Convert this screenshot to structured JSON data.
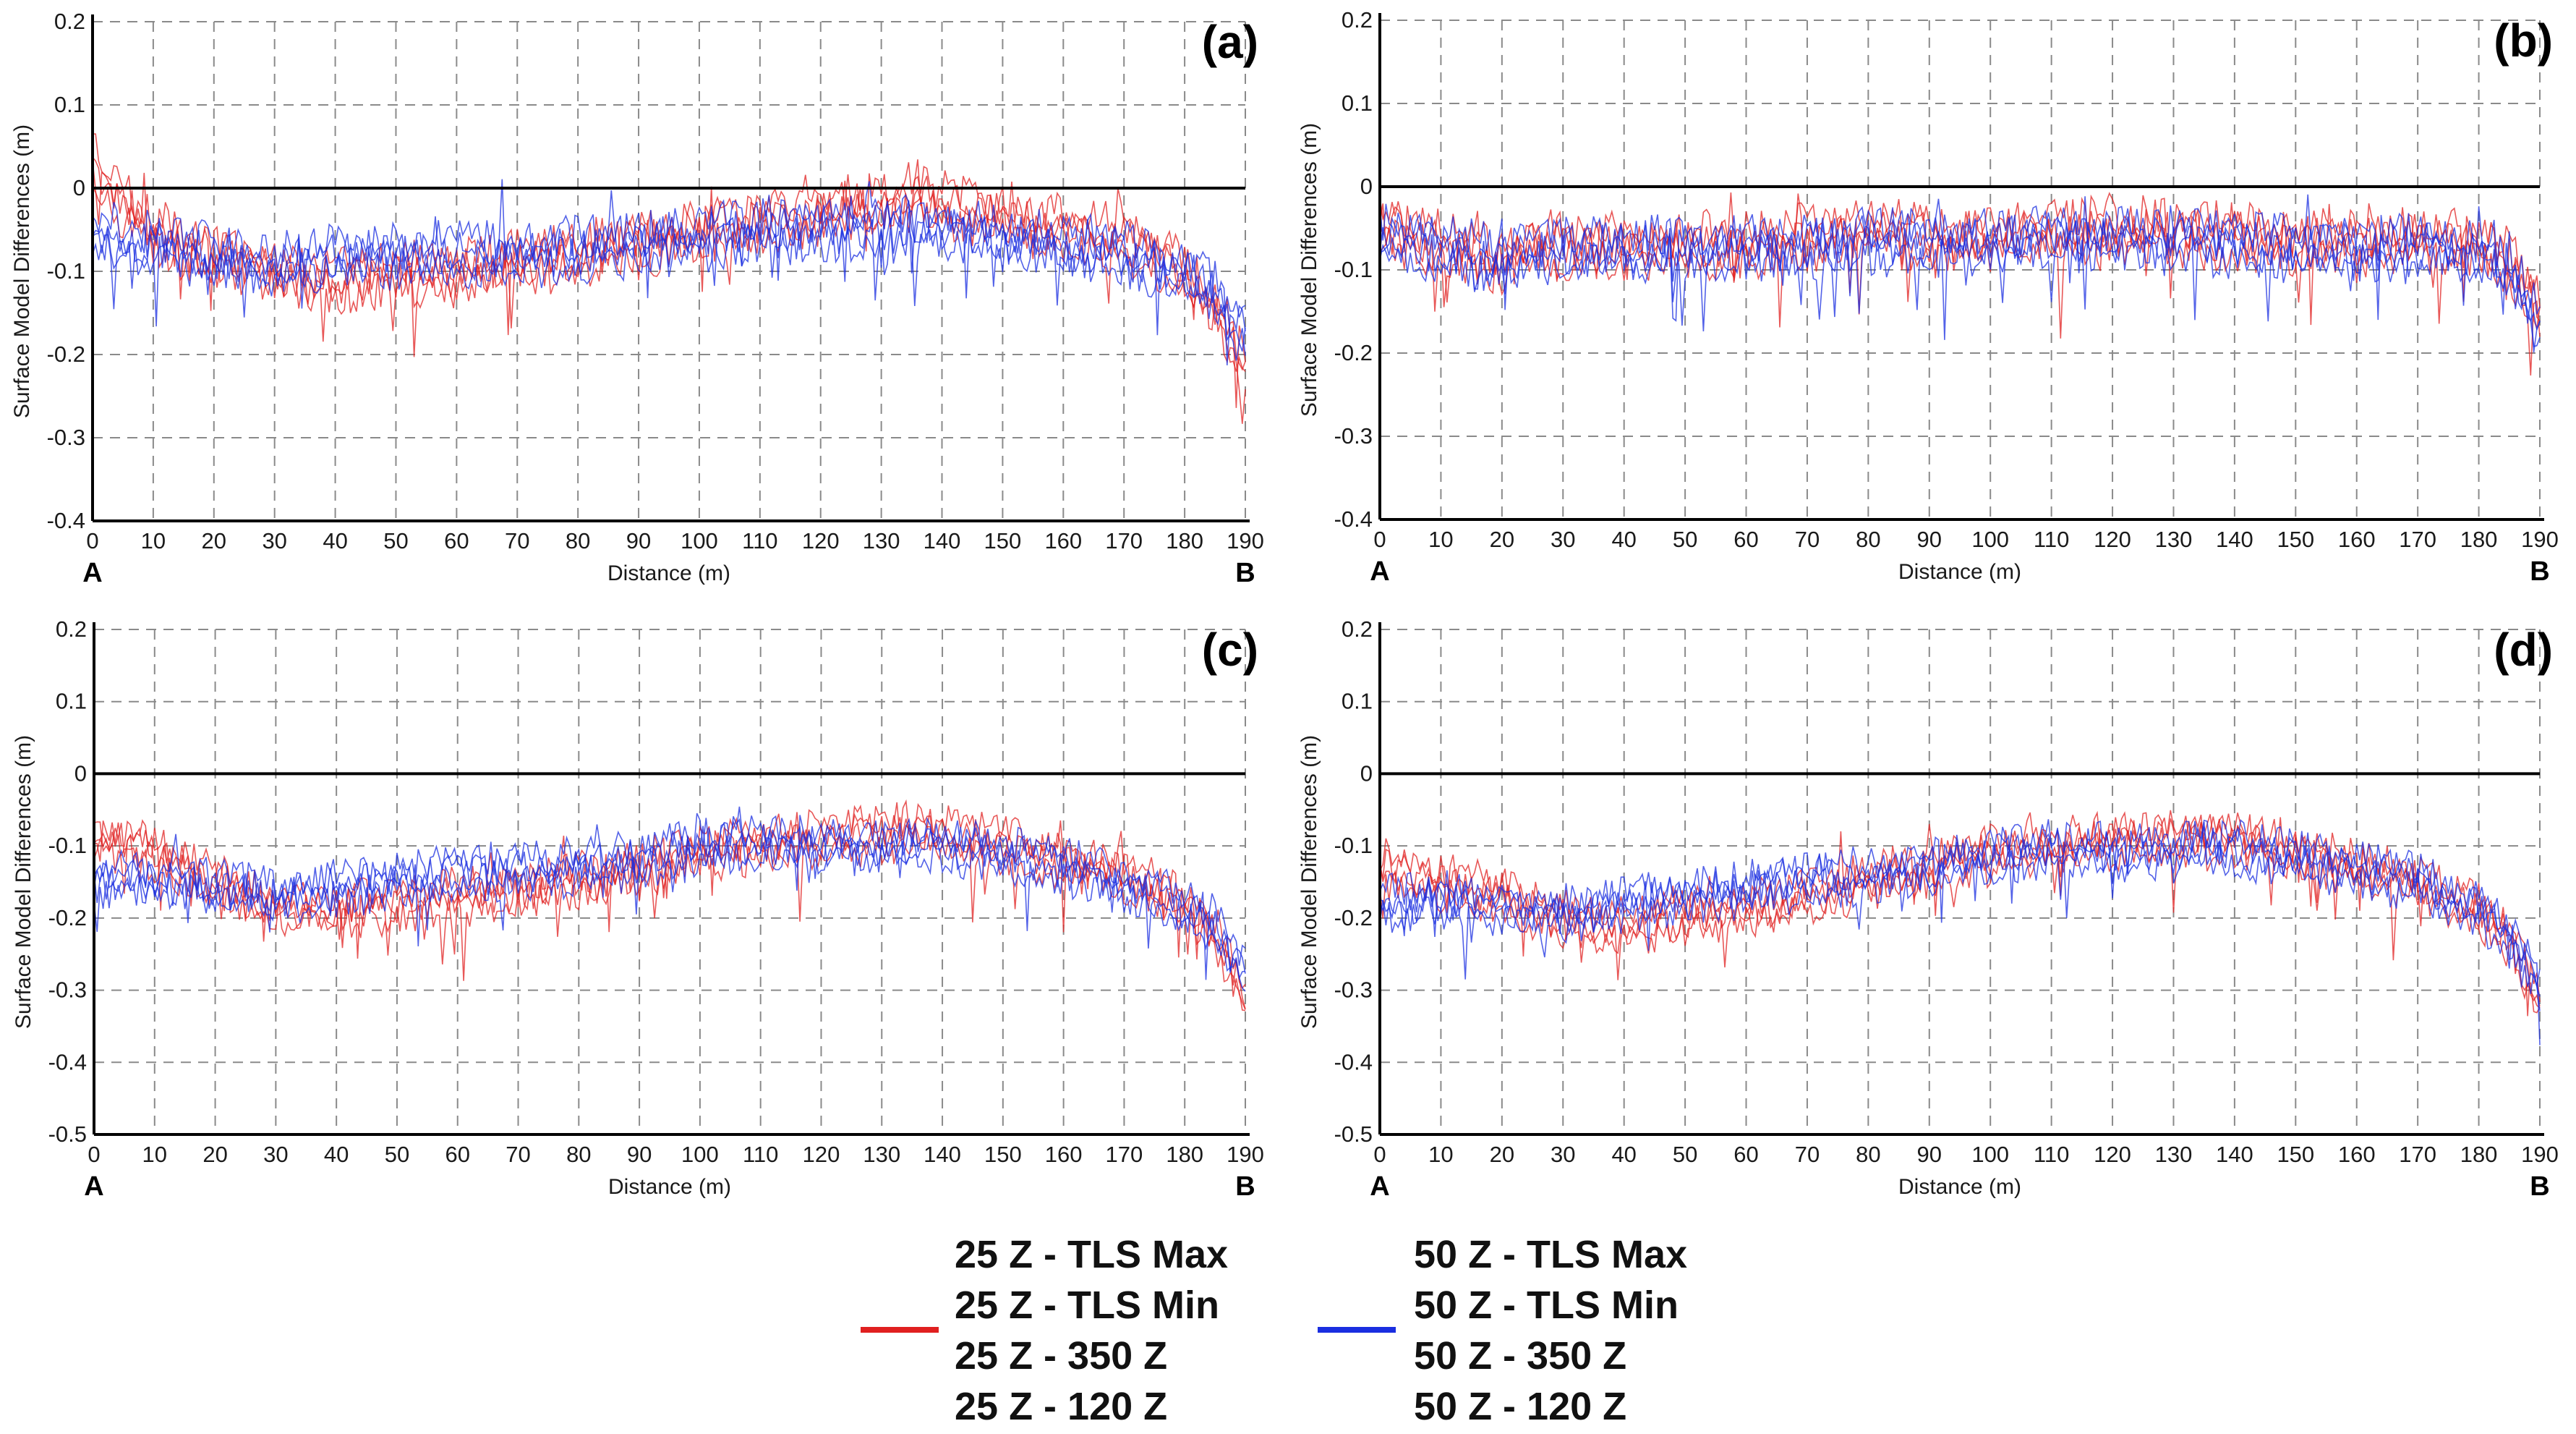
{
  "figure": {
    "panels": [
      "a",
      "b",
      "c",
      "d"
    ]
  },
  "chart_data": [
    {
      "type": "line",
      "panel_label": "(a)",
      "xlabel": "Distance (m)",
      "ylabel": "Surface Model Differences (m)",
      "xlim": [
        0,
        190
      ],
      "ylim": [
        -0.4,
        0.2
      ],
      "xticks": [
        0,
        10,
        20,
        30,
        40,
        50,
        60,
        70,
        80,
        90,
        100,
        110,
        120,
        130,
        140,
        150,
        160,
        170,
        180,
        190
      ],
      "yticks": [
        "0.2",
        "0.1",
        "0",
        "-0.1",
        "-0.2",
        "-0.3",
        "-0.4"
      ],
      "start_label": "A",
      "end_label": "B",
      "series": [
        {
          "name": "25 Z",
          "color": "#e02020",
          "x": [
            0,
            5,
            10,
            15,
            20,
            25,
            30,
            35,
            40,
            50,
            60,
            70,
            80,
            90,
            100,
            110,
            120,
            130,
            135,
            140,
            150,
            160,
            170,
            180,
            185,
            190
          ],
          "y": [
            0.03,
            -0.02,
            -0.05,
            -0.07,
            -0.08,
            -0.09,
            -0.1,
            -0.11,
            -0.11,
            -0.105,
            -0.1,
            -0.09,
            -0.08,
            -0.07,
            -0.05,
            -0.04,
            -0.03,
            -0.02,
            -0.01,
            -0.02,
            -0.04,
            -0.05,
            -0.06,
            -0.1,
            -0.14,
            -0.22
          ]
        },
        {
          "name": "50 Z",
          "color": "#1a2ee0",
          "x": [
            0,
            5,
            10,
            15,
            20,
            25,
            30,
            35,
            40,
            50,
            60,
            70,
            80,
            90,
            100,
            110,
            120,
            130,
            135,
            140,
            150,
            160,
            170,
            180,
            185,
            190
          ],
          "y": [
            -0.05,
            -0.06,
            -0.07,
            -0.075,
            -0.08,
            -0.09,
            -0.095,
            -0.09,
            -0.085,
            -0.08,
            -0.08,
            -0.08,
            -0.075,
            -0.07,
            -0.06,
            -0.05,
            -0.05,
            -0.05,
            -0.045,
            -0.05,
            -0.06,
            -0.07,
            -0.08,
            -0.1,
            -0.13,
            -0.18
          ]
        }
      ]
    },
    {
      "type": "line",
      "panel_label": "(b)",
      "xlabel": "Distance (m)",
      "ylabel": "Surface Model Differences (m)",
      "xlim": [
        0,
        190
      ],
      "ylim": [
        -0.4,
        0.2
      ],
      "xticks": [
        0,
        10,
        20,
        30,
        40,
        50,
        60,
        70,
        80,
        90,
        100,
        110,
        120,
        130,
        140,
        150,
        160,
        170,
        180,
        190
      ],
      "yticks": [
        "0.2",
        "0.1",
        "0",
        "-0.1",
        "-0.2",
        "-0.3",
        "-0.4"
      ],
      "start_label": "A",
      "end_label": "B",
      "series": [
        {
          "name": "25 Z",
          "color": "#e02020",
          "x": [
            0,
            5,
            10,
            15,
            20,
            25,
            30,
            40,
            50,
            60,
            70,
            80,
            90,
            100,
            110,
            120,
            130,
            140,
            150,
            160,
            170,
            180,
            185,
            190
          ],
          "y": [
            -0.05,
            -0.06,
            -0.07,
            -0.08,
            -0.09,
            -0.07,
            -0.07,
            -0.07,
            -0.07,
            -0.07,
            -0.06,
            -0.055,
            -0.06,
            -0.06,
            -0.055,
            -0.05,
            -0.055,
            -0.06,
            -0.065,
            -0.07,
            -0.06,
            -0.07,
            -0.09,
            -0.15
          ]
        },
        {
          "name": "50 Z",
          "color": "#1a2ee0",
          "x": [
            0,
            5,
            10,
            15,
            20,
            25,
            30,
            40,
            50,
            60,
            70,
            80,
            90,
            100,
            110,
            120,
            130,
            140,
            150,
            160,
            170,
            180,
            185,
            190
          ],
          "y": [
            -0.06,
            -0.07,
            -0.075,
            -0.08,
            -0.09,
            -0.08,
            -0.075,
            -0.075,
            -0.075,
            -0.075,
            -0.07,
            -0.065,
            -0.07,
            -0.065,
            -0.06,
            -0.06,
            -0.065,
            -0.07,
            -0.075,
            -0.075,
            -0.07,
            -0.08,
            -0.1,
            -0.16
          ]
        }
      ]
    },
    {
      "type": "line",
      "panel_label": "(c)",
      "xlabel": "Distance (m)",
      "ylabel": "Surface Model Differences (m)",
      "xlim": [
        0,
        190
      ],
      "ylim": [
        -0.5,
        0.2
      ],
      "xticks": [
        0,
        10,
        20,
        30,
        40,
        50,
        60,
        70,
        80,
        90,
        100,
        110,
        120,
        130,
        140,
        150,
        160,
        170,
        180,
        190
      ],
      "yticks": [
        "0.2",
        "0.1",
        "0",
        "-0.1",
        "-0.2",
        "-0.3",
        "-0.4",
        "-0.5"
      ],
      "start_label": "A",
      "end_label": "B",
      "series": [
        {
          "name": "25 Z",
          "color": "#e02020",
          "x": [
            0,
            5,
            10,
            15,
            20,
            25,
            30,
            35,
            40,
            50,
            60,
            70,
            80,
            90,
            100,
            110,
            120,
            130,
            135,
            140,
            150,
            160,
            170,
            180,
            185,
            190
          ],
          "y": [
            -0.09,
            -0.1,
            -0.11,
            -0.13,
            -0.15,
            -0.17,
            -0.18,
            -0.185,
            -0.19,
            -0.18,
            -0.17,
            -0.16,
            -0.15,
            -0.13,
            -0.11,
            -0.1,
            -0.09,
            -0.085,
            -0.08,
            -0.085,
            -0.1,
            -0.12,
            -0.14,
            -0.18,
            -0.22,
            -0.32
          ]
        },
        {
          "name": "50 Z",
          "color": "#1a2ee0",
          "x": [
            0,
            5,
            10,
            15,
            20,
            25,
            30,
            35,
            40,
            50,
            60,
            70,
            80,
            90,
            100,
            110,
            120,
            130,
            135,
            140,
            150,
            160,
            170,
            180,
            185,
            190
          ],
          "y": [
            -0.15,
            -0.15,
            -0.15,
            -0.155,
            -0.16,
            -0.165,
            -0.17,
            -0.165,
            -0.16,
            -0.15,
            -0.14,
            -0.135,
            -0.13,
            -0.12,
            -0.1,
            -0.095,
            -0.1,
            -0.1,
            -0.095,
            -0.1,
            -0.11,
            -0.13,
            -0.15,
            -0.18,
            -0.21,
            -0.28
          ]
        }
      ]
    },
    {
      "type": "line",
      "panel_label": "(d)",
      "xlabel": "Distance (m)",
      "ylabel": "Surface Model Differences (m)",
      "xlim": [
        0,
        190
      ],
      "ylim": [
        -0.5,
        0.2
      ],
      "xticks": [
        0,
        10,
        20,
        30,
        40,
        50,
        60,
        70,
        80,
        90,
        100,
        110,
        120,
        130,
        140,
        150,
        160,
        170,
        180,
        190
      ],
      "yticks": [
        "0.2",
        "0.1",
        "0",
        "-0.1",
        "-0.2",
        "-0.3",
        "-0.4",
        "-0.5"
      ],
      "start_label": "A",
      "end_label": "B",
      "series": [
        {
          "name": "25 Z",
          "color": "#e02020",
          "x": [
            0,
            5,
            10,
            15,
            20,
            25,
            30,
            35,
            40,
            50,
            60,
            70,
            80,
            90,
            100,
            110,
            120,
            130,
            135,
            140,
            150,
            160,
            170,
            180,
            185,
            190
          ],
          "y": [
            -0.13,
            -0.14,
            -0.15,
            -0.16,
            -0.17,
            -0.19,
            -0.2,
            -0.205,
            -0.21,
            -0.2,
            -0.19,
            -0.17,
            -0.15,
            -0.13,
            -0.11,
            -0.1,
            -0.095,
            -0.09,
            -0.085,
            -0.09,
            -0.11,
            -0.13,
            -0.15,
            -0.19,
            -0.23,
            -0.32
          ]
        },
        {
          "name": "50 Z",
          "color": "#1a2ee0",
          "x": [
            0,
            5,
            10,
            15,
            20,
            25,
            30,
            35,
            40,
            50,
            60,
            70,
            80,
            90,
            100,
            110,
            120,
            130,
            135,
            140,
            150,
            160,
            170,
            180,
            185,
            190
          ],
          "y": [
            -0.18,
            -0.18,
            -0.175,
            -0.18,
            -0.185,
            -0.19,
            -0.195,
            -0.19,
            -0.18,
            -0.17,
            -0.16,
            -0.15,
            -0.14,
            -0.13,
            -0.115,
            -0.105,
            -0.11,
            -0.11,
            -0.1,
            -0.105,
            -0.12,
            -0.135,
            -0.15,
            -0.19,
            -0.23,
            -0.3
          ]
        }
      ]
    }
  ],
  "legend": {
    "groups": [
      {
        "color": "#e02020",
        "entries": [
          "25 Z - TLS Max",
          "25 Z - TLS Min",
          "25 Z - 350 Z",
          "25 Z - 120 Z"
        ]
      },
      {
        "color": "#1a2ee0",
        "entries": [
          "50 Z - TLS Max",
          "50 Z - TLS Min",
          "50 Z - 350 Z",
          "50 Z - 120 Z"
        ]
      }
    ]
  }
}
